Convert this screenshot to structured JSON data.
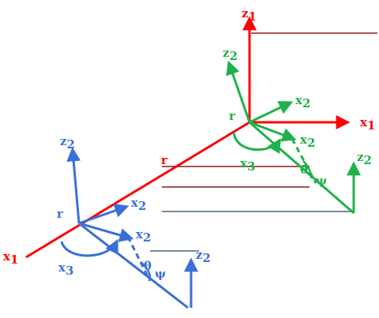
{
  "colors": {
    "red": "#ff0000",
    "dark_red": "#8b1a1a",
    "green": "#1fb24a",
    "blue": "#3a6fd8",
    "slate": "#4a6478"
  },
  "labels": {
    "z1": {
      "main": "z",
      "sub": "1"
    },
    "x1": {
      "main": "x",
      "sub": "1"
    },
    "z2_green": {
      "main": "z",
      "sub": "2"
    },
    "x2_green": {
      "main": "x",
      "sub": "2"
    },
    "x2_green_lower": {
      "main": "x",
      "sub": "2"
    },
    "z2_green_right": {
      "main": "z",
      "sub": "2"
    },
    "x3_green": {
      "main": "x",
      "sub": "3"
    },
    "x3_blue": {
      "main": "x",
      "sub": "3"
    },
    "r_green": "r",
    "r_main": "r",
    "r_blue": "r",
    "theta_green": "θ",
    "psi_green": "ψ",
    "theta_blue": "θ",
    "psi_blue": "ψ",
    "z2_blue": {
      "main": "z",
      "sub": "2"
    },
    "x2_blue": {
      "main": "x",
      "sub": "2"
    },
    "x2_blue_lower": {
      "main": "x",
      "sub": "2"
    },
    "z2_blue_right": {
      "main": "z",
      "sub": "2"
    }
  }
}
